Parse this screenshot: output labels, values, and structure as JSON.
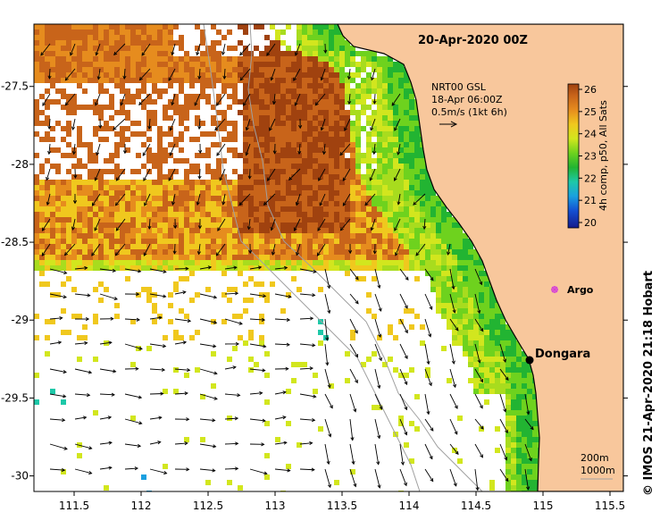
{
  "map": {
    "title": "20-Apr-2020 00Z",
    "lon_range": [
      111.3,
      115.6
    ],
    "lat_range": [
      -30.1,
      -27.1
    ],
    "x_ticks": [
      111.5,
      112,
      112.5,
      113,
      113.5,
      114,
      114.5,
      115,
      115.5
    ],
    "x_tick_labels": [
      "111.5",
      "112",
      "112.5",
      "113",
      "113.5",
      "114",
      "114.5",
      "115",
      "115.5"
    ],
    "y_ticks": [
      -27.5,
      -28,
      -28.5,
      -29,
      -29.5,
      -30
    ],
    "y_tick_labels": [
      "-27.5",
      "-28",
      "-28.5",
      "-29",
      "-29.5",
      "-30"
    ],
    "colors": {
      "land": "#f8c79c",
      "coast": "#000000",
      "isobath": "#a0a0a0",
      "arrow": "#000000",
      "argo": "#d640d6"
    }
  },
  "current_legend": {
    "line1": "NRT00 GSL",
    "line2": "18-Apr 06:00Z",
    "line3": "0.5m/s (1kt 6h)"
  },
  "colorbar": {
    "label": "4h comp, p50, All Sats",
    "ticks": [
      "26",
      "25",
      "24",
      "23",
      "22",
      "21",
      "20"
    ],
    "range": [
      20,
      26
    ]
  },
  "places": {
    "dongara": "Dongara",
    "argo": "Argo"
  },
  "isobath_legend": {
    "line1": "200m",
    "line2": "1000m"
  },
  "credit": {
    "text": "© IMOS 21-Apr-2020 21:18 Hobart"
  }
}
